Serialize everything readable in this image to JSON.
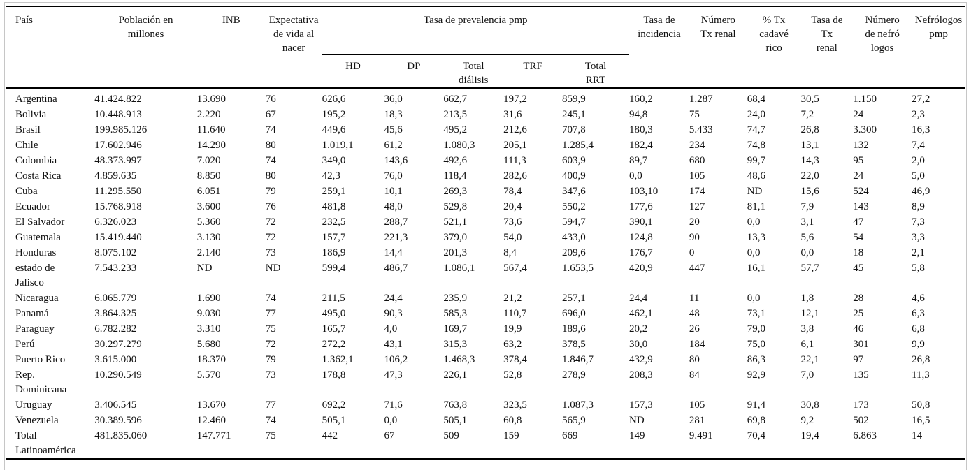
{
  "colors": {
    "background": "#ffffff",
    "text": "#111111",
    "rule": "#000000",
    "outer_border": "#c6c6c6"
  },
  "table": {
    "group_header": "Tasa de prevalencia pmp",
    "main_headers": [
      "País",
      "Población en\nmillones",
      "INB",
      "Expectativa\nde vida al\nnacer",
      "Tasa de\nincidencia",
      "Número\nTx renal",
      "% Tx\ncadavé\nrico",
      "Tasa de\nTx\nrenal",
      "Número\nde nefró\nlogos",
      "Nefrólogos\npmp"
    ],
    "sub_headers": [
      "HD",
      "DP",
      "Total\ndiálisis",
      "TRF",
      "Total\nRRT"
    ],
    "rows": [
      {
        "country": "Argentina",
        "values": [
          "41.424.822",
          "13.690",
          "76",
          "626,6",
          "36,0",
          "662,7",
          "197,2",
          "859,9",
          "160,2",
          "1.287",
          "68,4",
          "30,5",
          "1.150",
          "27,2"
        ]
      },
      {
        "country": "Bolivia",
        "values": [
          "10.448.913",
          "2.220",
          "67",
          "195,2",
          "18,3",
          "213,5",
          "31,6",
          "245,1",
          "94,8",
          "75",
          "24,0",
          "7,2",
          "24",
          "2,3"
        ]
      },
      {
        "country": "Brasil",
        "values": [
          "199.985.126",
          "11.640",
          "74",
          "449,6",
          "45,6",
          "495,2",
          "212,6",
          "707,8",
          "180,3",
          "5.433",
          "74,7",
          "26,8",
          "3.300",
          "16,3"
        ]
      },
      {
        "country": "Chile",
        "values": [
          "17.602.946",
          "14.290",
          "80",
          "1.019,1",
          "61,2",
          "1.080,3",
          "205,1",
          "1.285,4",
          "182,4",
          "234",
          "74,8",
          "13,1",
          "132",
          "7,4"
        ]
      },
      {
        "country": "Colombia",
        "values": [
          "48.373.997",
          "7.020",
          "74",
          "349,0",
          "143,6",
          "492,6",
          "111,3",
          "603,9",
          "89,7",
          "680",
          "99,7",
          "14,3",
          "95",
          "2,0"
        ]
      },
      {
        "country": "Costa Rica",
        "values": [
          "4.859.635",
          "8.850",
          "80",
          "42,3",
          "76,0",
          "118,4",
          "282,6",
          "400,9",
          "0,0",
          "105",
          "48,6",
          "22,0",
          "24",
          "5,0"
        ]
      },
      {
        "country": "Cuba",
        "values": [
          "11.295.550",
          "6.051",
          "79",
          "259,1",
          "10,1",
          "269,3",
          "78,4",
          "347,6",
          "103,10",
          "174",
          "ND",
          "15,6",
          "524",
          "46,9"
        ]
      },
      {
        "country": "Ecuador",
        "values": [
          "15.768.918",
          "3.600",
          "76",
          "481,8",
          "48,0",
          "529,8",
          "20,4",
          "550,2",
          "177,6",
          "127",
          "81,1",
          "7,9",
          "143",
          "8,9"
        ]
      },
      {
        "country": "El Salvador",
        "values": [
          "6.326.023",
          "5.360",
          "72",
          "232,5",
          "288,7",
          "521,1",
          "73,6",
          "594,7",
          "390,1",
          "20",
          "0,0",
          "3,1",
          "47",
          "7,3"
        ]
      },
      {
        "country": "Guatemala",
        "values": [
          "15.419.440",
          "3.130",
          "72",
          "157,7",
          "221,3",
          "379,0",
          "54,0",
          "433,0",
          "124,8",
          "90",
          "13,3",
          "5,6",
          "54",
          "3,3"
        ]
      },
      {
        "country": "Honduras",
        "values": [
          "8.075.102",
          "2.140",
          "73",
          "186,9",
          "14,4",
          "201,3",
          "8,4",
          "209,6",
          "176,7",
          "0",
          "0,0",
          "0,0",
          "18",
          "2,1"
        ]
      },
      {
        "country": "estado de\nJalisco",
        "values": [
          "7.543.233",
          "ND",
          "ND",
          "599,4",
          "486,7",
          "1.086,1",
          "567,4",
          "1.653,5",
          "420,9",
          "447",
          "16,1",
          "57,7",
          "45",
          "5,8"
        ]
      },
      {
        "country": "Nicaragua",
        "values": [
          "6.065.779",
          "1.690",
          "74",
          "211,5",
          "24,4",
          "235,9",
          "21,2",
          "257,1",
          "24,4",
          "11",
          "0,0",
          "1,8",
          "28",
          "4,6"
        ]
      },
      {
        "country": "Panamá",
        "values": [
          "3.864.325",
          "9.030",
          "77",
          "495,0",
          "90,3",
          "585,3",
          "110,7",
          "696,0",
          "462,1",
          "48",
          "73,1",
          "12,1",
          "25",
          "6,3"
        ]
      },
      {
        "country": "Paraguay",
        "values": [
          "6.782.282",
          "3.310",
          "75",
          "165,7",
          "4,0",
          "169,7",
          "19,9",
          "189,6",
          "20,2",
          "26",
          "79,0",
          "3,8",
          "46",
          "6,8"
        ]
      },
      {
        "country": "Perú",
        "values": [
          "30.297.279",
          "5.680",
          "72",
          "272,2",
          "43,1",
          "315,3",
          "63,2",
          "378,5",
          "30,0",
          "184",
          "75,0",
          "6,1",
          "301",
          "9,9"
        ]
      },
      {
        "country": "Puerto Rico",
        "values": [
          "3.615.000",
          "18.370",
          "79",
          "1.362,1",
          "106,2",
          "1.468,3",
          "378,4",
          "1.846,7",
          "432,9",
          "80",
          "86,3",
          "22,1",
          "97",
          "26,8"
        ]
      },
      {
        "country": "Rep.\nDominicana",
        "values": [
          "10.290.549",
          "5.570",
          "73",
          "178,8",
          "47,3",
          "226,1",
          "52,8",
          "278,9",
          "208,3",
          "84",
          "92,9",
          "7,0",
          "135",
          "11,3"
        ]
      },
      {
        "country": "Uruguay",
        "values": [
          "3.406.545",
          "13.670",
          "77",
          "692,2",
          "71,6",
          "763,8",
          "323,5",
          "1.087,3",
          "157,3",
          "105",
          "91,4",
          "30,8",
          "173",
          "50,8"
        ]
      },
      {
        "country": "Venezuela",
        "values": [
          "30.389.596",
          "12.460",
          "74",
          "505,1",
          "0,0",
          "505,1",
          "60,8",
          "565,9",
          "ND",
          "281",
          "69,8",
          "9,2",
          "502",
          "16,5"
        ]
      },
      {
        "country": "Total\nLatinoamérica",
        "values": [
          "481.835.060",
          "147.771",
          "75",
          "442",
          "67",
          "509",
          "159",
          "669",
          "149",
          "9.491",
          "70,4",
          "19,4",
          "6.863",
          "14"
        ]
      }
    ]
  }
}
